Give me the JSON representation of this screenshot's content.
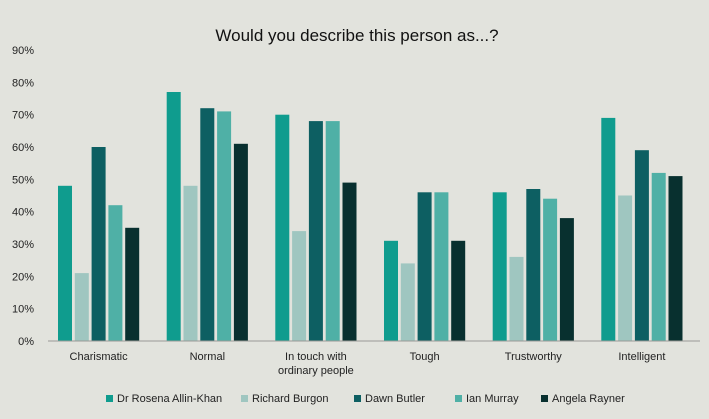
{
  "chart_data": {
    "type": "bar",
    "title": "Would you describe this person as...?",
    "categories": [
      [
        "Charismatic"
      ],
      [
        "Normal"
      ],
      [
        "In touch with",
        "ordinary people"
      ],
      [
        "Tough"
      ],
      [
        "Trustworthy"
      ],
      [
        "Intelligent"
      ]
    ],
    "series": [
      {
        "name": "Dr Rosena Allin-Khan",
        "color": "#0f9c8e",
        "values": [
          48,
          77,
          70,
          31,
          46,
          69
        ]
      },
      {
        "name": "Richard Burgon",
        "color": "#9fc6c0",
        "values": [
          21,
          48,
          34,
          24,
          26,
          45
        ]
      },
      {
        "name": "Dawn Butler",
        "color": "#0d5f62",
        "values": [
          60,
          72,
          68,
          46,
          47,
          59
        ]
      },
      {
        "name": "Ian Murray",
        "color": "#4fb0a6",
        "values": [
          42,
          71,
          68,
          46,
          44,
          52
        ]
      },
      {
        "name": "Angela Rayner",
        "color": "#08302f",
        "values": [
          35,
          61,
          49,
          31,
          38,
          51
        ]
      }
    ],
    "ylim": [
      0,
      90
    ],
    "y_ticks": [
      "0%",
      "10%",
      "20%",
      "30%",
      "40%",
      "50%",
      "60%",
      "70%",
      "80%",
      "90%"
    ],
    "legend_position": "bottom",
    "grid": false
  }
}
